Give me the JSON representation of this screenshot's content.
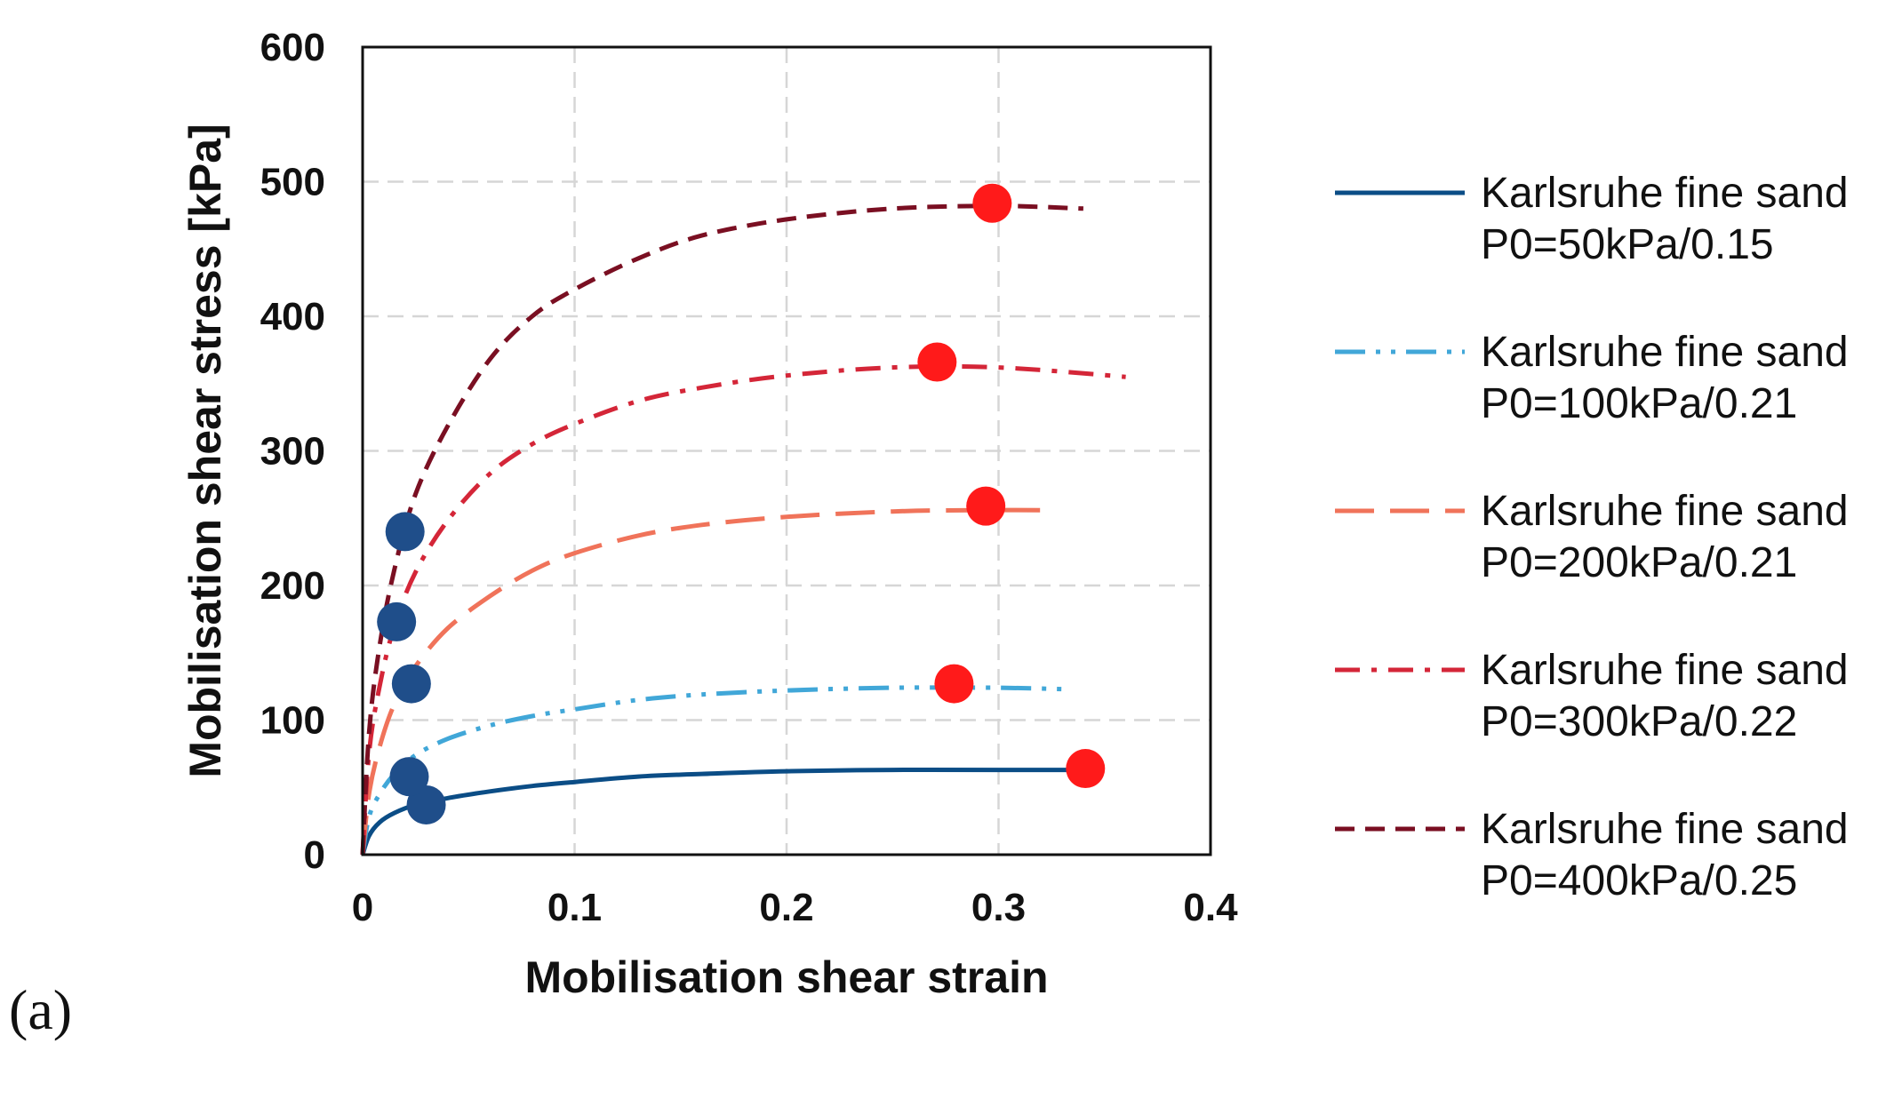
{
  "panel_label": "(a)",
  "chart_data": {
    "type": "line",
    "xlabel": "Mobilisation shear strain",
    "ylabel": "Mobilisation shear stress [kPa]",
    "xlim": [
      0,
      0.4
    ],
    "ylim": [
      0,
      600
    ],
    "xticks": [
      0,
      0.1,
      0.2,
      0.3,
      0.4
    ],
    "xtick_labels": [
      "0",
      "0.1",
      "0.2",
      "0.3",
      "0.4"
    ],
    "yticks": [
      0,
      100,
      200,
      300,
      400,
      500,
      600
    ],
    "ytick_labels": [
      "0",
      "100",
      "200",
      "300",
      "400",
      "500",
      "600"
    ],
    "grid": true,
    "legend_position": "right",
    "series": [
      {
        "name": "Karlsruhe fine sand",
        "label_line2": "P0=50kPa/0.15",
        "color": "#0b4d86",
        "line_style": "solid",
        "x": [
          0,
          0.003,
          0.008,
          0.015,
          0.025,
          0.04,
          0.06,
          0.08,
          0.1,
          0.13,
          0.16,
          0.2,
          0.25,
          0.3,
          0.34
        ],
        "y": [
          0,
          14,
          24,
          31,
          37,
          42,
          47,
          51,
          54,
          58,
          60,
          62,
          63,
          63,
          63
        ]
      },
      {
        "name": "Karlsruhe fine sand",
        "label_line2": "P0=100kPa/0.21",
        "color": "#41a7d8",
        "line_style": "dash-dot-dot",
        "x": [
          0,
          0.003,
          0.008,
          0.015,
          0.025,
          0.04,
          0.06,
          0.08,
          0.1,
          0.13,
          0.16,
          0.2,
          0.25,
          0.3,
          0.33
        ],
        "y": [
          0,
          28,
          45,
          60,
          74,
          86,
          96,
          103,
          108,
          115,
          119,
          122,
          124,
          124,
          123
        ]
      },
      {
        "name": "Karlsruhe fine sand",
        "label_line2": "P0=200kPa/0.21",
        "color": "#f0735a",
        "line_style": "long-dash",
        "x": [
          0,
          0.003,
          0.008,
          0.015,
          0.025,
          0.04,
          0.06,
          0.08,
          0.1,
          0.13,
          0.16,
          0.2,
          0.25,
          0.29,
          0.32
        ],
        "y": [
          0,
          45,
          80,
          112,
          140,
          168,
          192,
          211,
          224,
          237,
          245,
          251,
          255,
          256,
          256
        ]
      },
      {
        "name": "Karlsruhe fine sand",
        "label_line2": "P0=300kPa/0.22",
        "color": "#d42638",
        "line_style": "dash-dot",
        "x": [
          0,
          0.003,
          0.008,
          0.015,
          0.025,
          0.04,
          0.06,
          0.08,
          0.1,
          0.13,
          0.16,
          0.2,
          0.25,
          0.3,
          0.36
        ],
        "y": [
          0,
          75,
          125,
          170,
          210,
          248,
          283,
          305,
          320,
          337,
          347,
          356,
          362,
          362,
          355
        ]
      },
      {
        "name": "Karlsruhe fine sand",
        "label_line2": "P0=400kPa/0.25",
        "color": "#7a0f22",
        "line_style": "dash",
        "x": [
          0,
          0.003,
          0.008,
          0.015,
          0.025,
          0.04,
          0.06,
          0.08,
          0.1,
          0.13,
          0.16,
          0.2,
          0.25,
          0.3,
          0.34
        ],
        "y": [
          0,
          90,
          155,
          212,
          268,
          318,
          368,
          400,
          420,
          443,
          460,
          472,
          480,
          482,
          480
        ]
      }
    ],
    "markers": [
      {
        "name": "initial-points",
        "color": "#1f4e8a",
        "x": [
          0.03,
          0.022,
          0.023,
          0.016,
          0.02
        ],
        "y": [
          37,
          58,
          127,
          173,
          240
        ]
      },
      {
        "name": "peak-points",
        "color": "#ff1a1a",
        "x": [
          0.341,
          0.279,
          0.294,
          0.271,
          0.297
        ],
        "y": [
          64,
          127,
          259,
          366,
          484
        ]
      }
    ]
  }
}
